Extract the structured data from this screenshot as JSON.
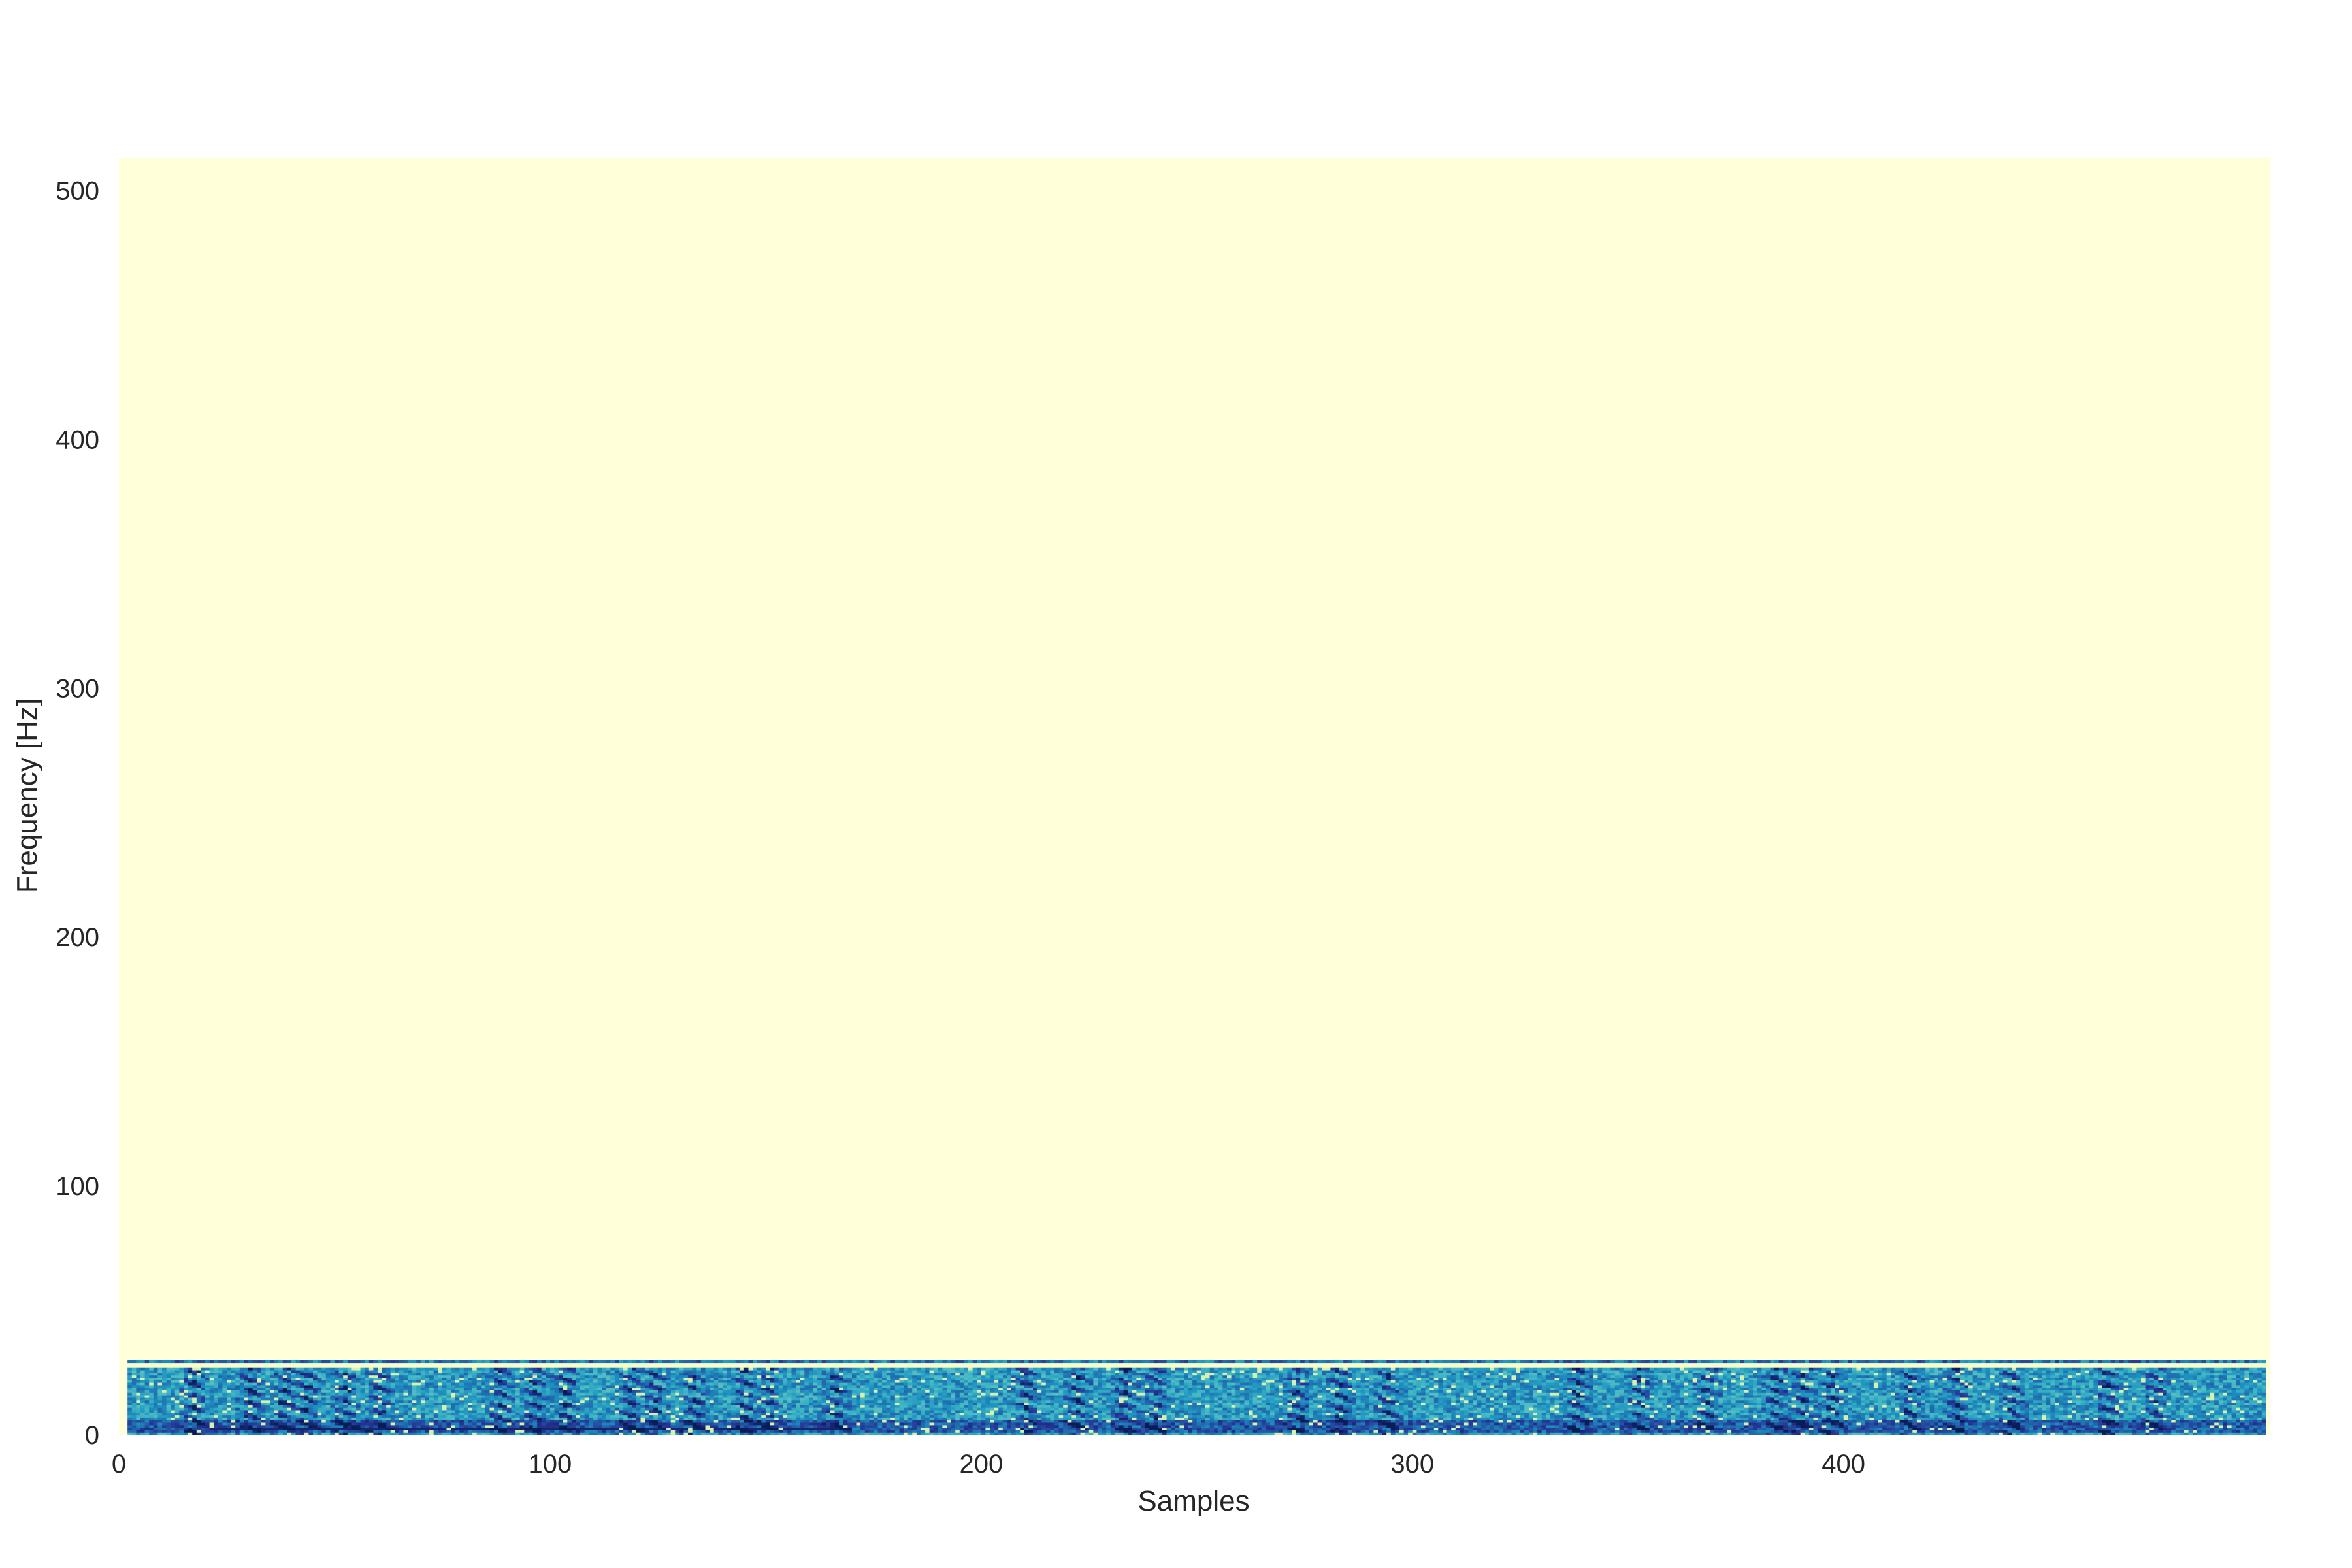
{
  "chart_data": {
    "type": "heatmap",
    "title": "",
    "xlabel": "Samples",
    "ylabel": "Frequency [Hz]",
    "xlim": [
      0,
      499
    ],
    "ylim": [
      0,
      513
    ],
    "x_ticks": [
      {
        "value": 0,
        "label": "0"
      },
      {
        "value": 100,
        "label": "100"
      },
      {
        "value": 200,
        "label": "200"
      },
      {
        "value": 300,
        "label": "300"
      },
      {
        "value": 400,
        "label": "400"
      }
    ],
    "y_ticks": [
      {
        "value": 0,
        "label": "0"
      },
      {
        "value": 100,
        "label": "100"
      },
      {
        "value": 200,
        "label": "200"
      },
      {
        "value": 300,
        "label": "300"
      },
      {
        "value": 400,
        "label": "400"
      },
      {
        "value": 500,
        "label": "500"
      }
    ],
    "colormap": "YlGnBu",
    "background_value_color": "#ffffd9",
    "energy_band_hz": [
      0,
      30
    ],
    "energy_band_samples": [
      2,
      497
    ],
    "low_frequency_dark_band_hz": [
      1,
      5
    ],
    "formant_event_samples": [
      17,
      30,
      38,
      43,
      52,
      60,
      88,
      96,
      103,
      118,
      124,
      133,
      145,
      150,
      166,
      210,
      222,
      233,
      240,
      273,
      283,
      294,
      338,
      352,
      368,
      384,
      390,
      397,
      415,
      426,
      439,
      461,
      472
    ],
    "grid": false,
    "legend": "none"
  }
}
